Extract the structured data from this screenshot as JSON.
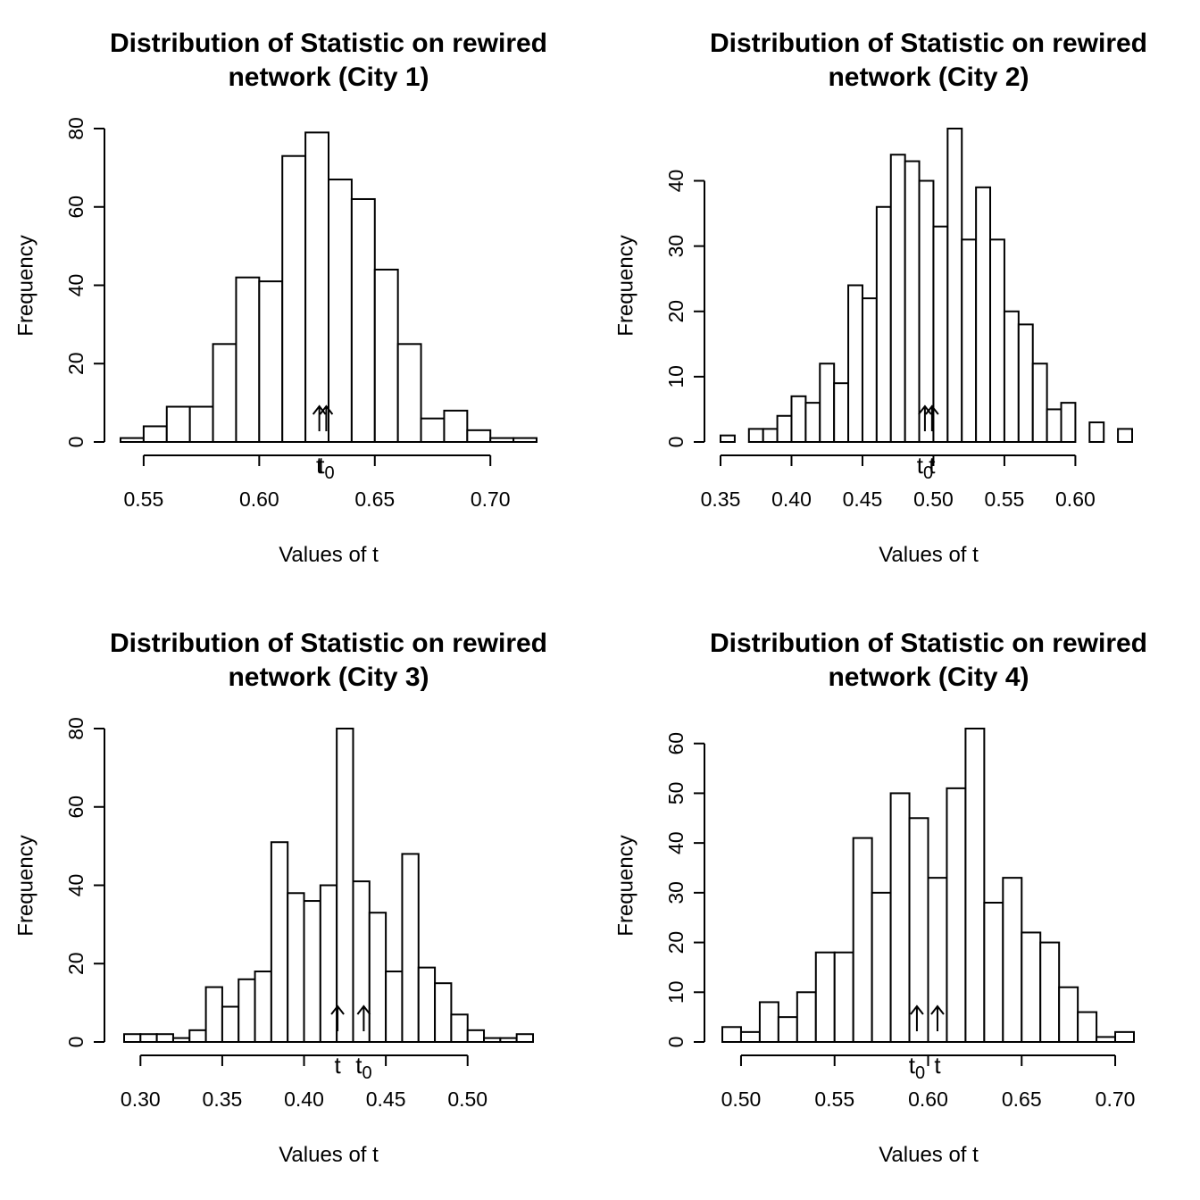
{
  "chart_data": [
    {
      "type": "bar",
      "title": [
        "Distribution of Statistic on rewired",
        "network (City 1)"
      ],
      "xlabel": "Values of t",
      "ylabel": "Frequency",
      "bins_start": 0.54,
      "bin_width": 0.01,
      "values": [
        1,
        4,
        9,
        9,
        25,
        42,
        41,
        73,
        79,
        67,
        62,
        44,
        25,
        6,
        8,
        3,
        1,
        1
      ],
      "xticks": [
        0.55,
        0.6,
        0.65,
        0.7
      ],
      "xtick_labels": [
        "0.55",
        "0.60",
        "0.65",
        "0.70"
      ],
      "yticks": [
        0,
        20,
        40,
        60,
        80
      ],
      "ylim": [
        0,
        80
      ],
      "markers": [
        {
          "label": "t",
          "sub": "",
          "x": 0.626
        },
        {
          "label": "t",
          "sub": "0",
          "x": 0.629
        }
      ]
    },
    {
      "type": "bar",
      "title": [
        "Distribution of Statistic on rewired",
        "network (City 2)"
      ],
      "xlabel": "Values of t",
      "ylabel": "Frequency",
      "bins_start": 0.35,
      "bin_width": 0.01,
      "values": [
        1,
        0,
        2,
        2,
        4,
        7,
        6,
        12,
        9,
        24,
        22,
        36,
        44,
        43,
        40,
        33,
        48,
        31,
        39,
        31,
        20,
        18,
        12,
        5,
        6,
        0,
        3,
        0,
        2
      ],
      "xticks": [
        0.35,
        0.4,
        0.45,
        0.5,
        0.55,
        0.6
      ],
      "xtick_labels": [
        "0.35",
        "0.40",
        "0.45",
        "0.50",
        "0.55",
        "0.60"
      ],
      "yticks": [
        0,
        10,
        20,
        30,
        40
      ],
      "ylim": [
        0,
        48
      ],
      "markers": [
        {
          "label": "t",
          "sub": "0",
          "x": 0.494
        },
        {
          "label": "t",
          "sub": "",
          "x": 0.499
        }
      ]
    },
    {
      "type": "bar",
      "title": [
        "Distribution of Statistic on rewired",
        "network (City 3)"
      ],
      "xlabel": "Values of t",
      "ylabel": "Frequency",
      "bins_start": 0.29,
      "bin_width": 0.01,
      "values": [
        2,
        2,
        2,
        1,
        3,
        14,
        9,
        16,
        18,
        51,
        38,
        36,
        40,
        80,
        41,
        33,
        18,
        48,
        19,
        15,
        7,
        3,
        1,
        1,
        2
      ],
      "xticks": [
        0.3,
        0.35,
        0.4,
        0.45,
        0.5
      ],
      "xtick_labels": [
        "0.30",
        "0.35",
        "0.40",
        "0.45",
        "0.50"
      ],
      "yticks": [
        0,
        20,
        40,
        60,
        80
      ],
      "ylim": [
        0,
        80
      ],
      "markers": [
        {
          "label": "t",
          "sub": "",
          "x": 0.4205
        },
        {
          "label": "t",
          "sub": "0",
          "x": 0.4365
        }
      ]
    },
    {
      "type": "bar",
      "title": [
        "Distribution of Statistic on rewired",
        "network (City 4)"
      ],
      "xlabel": "Values of t",
      "ylabel": "Frequency",
      "bins_start": 0.49,
      "bin_width": 0.01,
      "values": [
        3,
        2,
        8,
        5,
        10,
        18,
        18,
        41,
        30,
        50,
        45,
        33,
        51,
        63,
        28,
        33,
        22,
        20,
        11,
        6,
        1,
        2
      ],
      "xticks": [
        0.5,
        0.55,
        0.6,
        0.65,
        0.7
      ],
      "xtick_labels": [
        "0.50",
        "0.55",
        "0.60",
        "0.65",
        "0.70"
      ],
      "yticks": [
        0,
        10,
        20,
        30,
        40,
        50,
        60
      ],
      "ylim": [
        0,
        63
      ],
      "markers": [
        {
          "label": "t",
          "sub": "0",
          "x": 0.594
        },
        {
          "label": "t",
          "sub": "",
          "x": 0.605
        }
      ]
    }
  ]
}
